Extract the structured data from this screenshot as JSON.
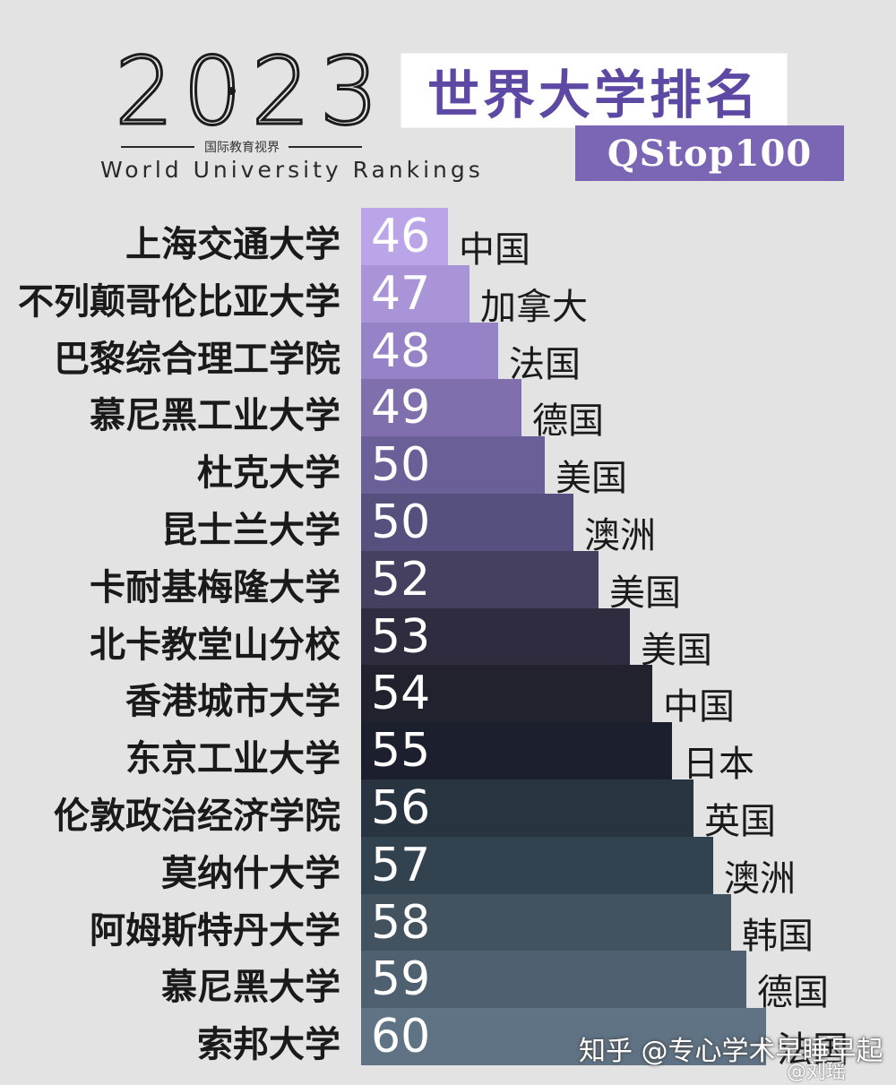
{
  "header": {
    "year": "2023",
    "subtitle_cn": "国际教育视界",
    "subtitle_en": "World University Rankings",
    "title": "世界大学排名",
    "tag": "QStop100"
  },
  "chart_data": {
    "type": "bar",
    "categories": [
      "上海交通大学",
      "不列颠哥伦比亚大学",
      "巴黎综合理工学院",
      "慕尼黑工业大学",
      "杜克大学",
      "昆士兰大学",
      "卡耐基梅隆大学",
      "北卡教堂山分校",
      "香港城市大学",
      "东京工业大学",
      "伦敦政治经济学院",
      "莫纳什大学",
      "阿姆斯特丹大学",
      "慕尼黑大学",
      "索邦大学"
    ],
    "values": [
      46,
      47,
      48,
      49,
      50,
      50,
      52,
      53,
      54,
      55,
      56,
      57,
      58,
      59,
      60
    ],
    "countries": [
      "中国",
      "加拿大",
      "法国",
      "德国",
      "美国",
      "澳洲",
      "美国",
      "美国",
      "中国",
      "日本",
      "英国",
      "澳洲",
      "韩国",
      "德国",
      "法国"
    ],
    "colors": [
      "#b9a5e8",
      "#a994d8",
      "#9682c6",
      "#7f6fad",
      "#6b5f98",
      "#56507e",
      "#45405f",
      "#2f2c40",
      "#22222f",
      "#1c1f2d",
      "#283541",
      "#33424f",
      "#42525f",
      "#4f6070",
      "#5f7385"
    ],
    "title": "世界大学排名"
  },
  "watermark": {
    "line1": "知乎 @专心学术早睡早起",
    "line2": "@刘瑶"
  }
}
